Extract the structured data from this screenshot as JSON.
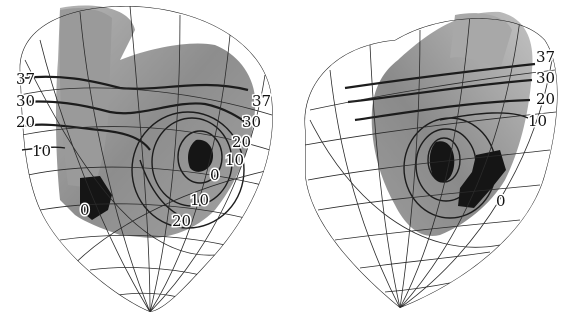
{
  "left_view": {
    "labels": [
      "37",
      "30",
      "20",
      "10",
      "37",
      "30",
      "20",
      "10",
      "0",
      "10",
      "20",
      "0"
    ]
  },
  "right_view": {
    "labels": [
      "37",
      "30",
      "20",
      "10",
      "0"
    ]
  }
}
